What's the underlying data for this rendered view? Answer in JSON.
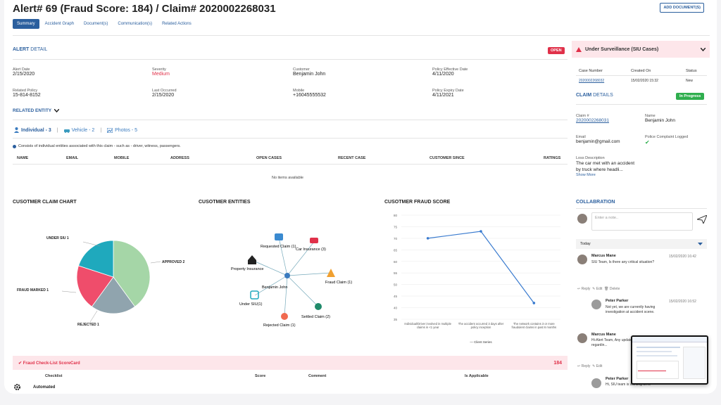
{
  "header": {
    "title": "Alert# 69 (Fraud Score: 184) / Claim# 2020002268031",
    "add_document": "ADD DOCUMENT(S)"
  },
  "tabs": [
    {
      "label": "Summary",
      "active": true
    },
    {
      "label": "Accident Graph",
      "active": false
    },
    {
      "label": "Document(s)",
      "active": false
    },
    {
      "label": "Communication(s)",
      "active": false
    },
    {
      "label": "Related Actions",
      "active": false
    }
  ],
  "alert_detail": {
    "heading_strong": "ALERT",
    "heading_light": "DETAIL",
    "status": "OPEN",
    "fields": [
      {
        "label": "Alert Date",
        "value": "2/15/2020"
      },
      {
        "label": "Severity",
        "value": "Medium"
      },
      {
        "label": "Customer",
        "value": "Benjamin John"
      },
      {
        "label": "Policy Effective Date",
        "value": "4/11/2020"
      },
      {
        "label": "Related Policy",
        "value": "15-814-8152"
      },
      {
        "label": "Last Occurred",
        "value": "2/15/2020"
      },
      {
        "label": "Mobile",
        "value": "+16045555532"
      },
      {
        "label": "Policy Expiry Date",
        "value": "4/11/2021"
      }
    ]
  },
  "related_entity": {
    "heading": "RELATED ENTITY",
    "tabs": [
      {
        "label": "Individual - 3",
        "icon": "user-icon"
      },
      {
        "label": "Vehicle - 2",
        "icon": "car-icon"
      },
      {
        "label": "Photos - 5",
        "icon": "image-icon"
      }
    ],
    "note": "Consists of individual entities associated with this claim - such as - driver, witness, passengers.",
    "columns": [
      "NAME",
      "EMAIL",
      "MOBILE",
      "ADDRESS",
      "OPEN CASES",
      "RECENT CASE",
      "CUSTOMER SINCE",
      "RATINGS"
    ],
    "empty": "No items available"
  },
  "claim_chart": {
    "title": "CUSOTMER CLAIM CHART",
    "labels": [
      "UNDER SIU 1",
      "APPROVED 2",
      "FRAUD MARKED 1",
      "REJECTED 1"
    ]
  },
  "entities": {
    "title": "CUSOTMER ENTITIES",
    "center": "Benjamin John",
    "nodes": [
      "Requested Claim (1)",
      "Car Insurance (3)",
      "Property Insurance",
      "Fraud Claim (1)",
      "Under SIU(1)",
      "Settled Claim (2)",
      "Rejected Claim (1)"
    ]
  },
  "fraud_score": {
    "title": "CUSOTMER FRAUD SCORE",
    "legend": "Client Series",
    "y_ticks": [
      "80",
      "75",
      "70",
      "65",
      "60",
      "55",
      "50",
      "45",
      "40",
      "35"
    ],
    "x_labels": [
      "Individual/Driver involved in multiple claims in <1 year",
      "The accident occurred 3 days after policy inception",
      "The network contains 3 or more fraudulent claims in past 6 months"
    ]
  },
  "chart_data": {
    "type": "pie",
    "categories": [
      "Approved",
      "Rejected",
      "Fraud Marked",
      "Under SIU"
    ],
    "values": [
      2,
      1,
      1,
      1
    ],
    "colors": [
      "#a5d6a7",
      "#90a4ae",
      "#ef4d6b",
      "#1fa9bd"
    ]
  },
  "line_chart_data": {
    "type": "line",
    "series": [
      {
        "name": "Client Series",
        "values": [
          70,
          73,
          42
        ]
      }
    ],
    "ylim": [
      35,
      80
    ]
  },
  "scorecard": {
    "title": "Fraud Check-List ScoreCard",
    "total": "184",
    "columns": [
      "Checklist",
      "Score",
      "Comment",
      "Is Applicable"
    ],
    "row_label": "Automated"
  },
  "sidebar": {
    "surveillance": "Under Surveillance (SIU Cases)",
    "cases_cols": [
      "Case Number",
      "Created On",
      "Status"
    ],
    "case": {
      "number": "2020002268032",
      "created": "15/02/2020 15:32",
      "status": "New"
    },
    "claim_heading_strong": "CLAIM",
    "claim_heading_light": "DETAILS",
    "claim_status": "In Progress",
    "claim_no_label": "Claim #",
    "claim_no": "2020002268031",
    "name_label": "Name",
    "name": "Benjamin John",
    "email_label": "Email",
    "email": "benjamin@gmail.com",
    "police_label": "Police Complaint Logged",
    "loss_label": "Loss Description",
    "loss": "The car met with an accident by truck where headli...",
    "show_more": "Show More",
    "collab": "COLLABRATION",
    "note_placeholder": "Enter a note..",
    "today": "Today",
    "messages": [
      {
        "name": "Marcus Mane",
        "time": "15/02/2020 16:42",
        "text": "SIU Team, Is there any critical situation?"
      },
      {
        "name": "Peter Parker",
        "time": "15/02/2020 16:52",
        "text": "Not yet, we are currently having investigation at accident scene."
      },
      {
        "name": "Marcus Mane",
        "time": "",
        "text": "Hi-Alert Team, Any updates regardin..."
      },
      {
        "name": "Peter Parker",
        "time": "",
        "text": "Hi, SIU team is working on it."
      }
    ],
    "reply": "Reply",
    "edit": "Edit",
    "delete": "Delete"
  }
}
